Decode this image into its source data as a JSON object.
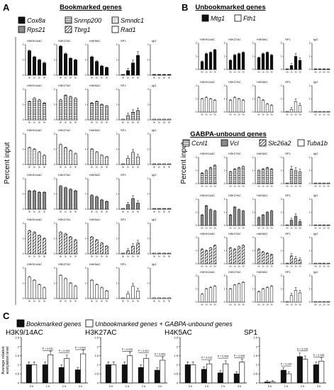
{
  "panel_labels": [
    "A",
    "B",
    "C"
  ],
  "panel_a": {
    "title": "Bookmarked genes",
    "y_label": "Percent input",
    "legend": [
      {
        "name": "Cox8a",
        "fill": "black"
      },
      {
        "name": "Snrnp200",
        "fill": "hstripe"
      },
      {
        "name": "Smndc1",
        "fill": "dots"
      },
      {
        "name": "Rps21",
        "fill": "gray"
      },
      {
        "name": "Tbrg1",
        "fill": "diag"
      },
      {
        "name": "Rad1",
        "fill": "white"
      }
    ]
  },
  "panel_b": {
    "title_unbookmarked": "Unbookmarked genes",
    "legend_unbookmarked": [
      {
        "name": "Mtg1",
        "fill": "black"
      },
      {
        "name": "Fth1",
        "fill": "white"
      }
    ],
    "title_unbound": "GABPA-unbound genes",
    "legend_unbound": [
      {
        "name": "Ccnl1",
        "fill": "hstripe"
      },
      {
        "name": "Vcl",
        "fill": "gray"
      },
      {
        "name": "Slc26a2",
        "fill": "diag"
      },
      {
        "name": "Tuba1b",
        "fill": "white"
      }
    ],
    "y_label": "Percent input"
  },
  "panel_c": {
    "legend": [
      {
        "name": "Bookmarked genes",
        "fill": "black"
      },
      {
        "name": "Unbookmarked genes + GABPA-unbound genes",
        "fill": "white"
      }
    ],
    "y_label_line1": "Average relative",
    "y_label_line2": "acetylation level"
  },
  "colors": {
    "black": "#111111",
    "gray": "#8a8a8a",
    "white": "#ffffff",
    "ink": "#000000"
  },
  "chart_data": [
    {
      "type": "bar",
      "panel": "A",
      "marks": [
        "H3K9/14AC",
        "H3K27AC",
        "H4K5AC",
        "SP1",
        "IgG"
      ],
      "categories": [
        "0 h",
        "1 h",
        "2 h",
        "3 h"
      ],
      "rows": [
        {
          "gene": "Cox8a",
          "fill": "black",
          "values": [
            [
              1.6,
              1.2,
              1.0,
              0.8
            ],
            [
              1.9,
              1.4,
              1.1,
              1.0
            ],
            [
              1.2,
              0.9,
              0.6,
              0.5
            ],
            [
              0.05,
              0.3,
              0.8,
              1.3
            ],
            [
              0.05,
              0.05,
              0.05,
              0.05
            ]
          ]
        },
        {
          "gene": "Snrnp200",
          "fill": "hstripe",
          "values": [
            [
              1.2,
              1.4,
              1.3,
              1.1
            ],
            [
              1.3,
              1.6,
              1.5,
              1.4
            ],
            [
              1.1,
              1.2,
              1.0,
              0.9
            ],
            [
              0.05,
              0.3,
              0.5,
              0.6
            ],
            [
              0.05,
              0.05,
              0.05,
              0.05
            ]
          ]
        },
        {
          "gene": "Smndc1",
          "fill": "dots",
          "values": [
            [
              1.1,
              1.0,
              0.8,
              0.6
            ],
            [
              1.3,
              1.1,
              0.9,
              0.7
            ],
            [
              1.0,
              0.8,
              0.6,
              0.5
            ],
            [
              0.05,
              0.4,
              0.8,
              0.5
            ],
            [
              0.05,
              0.05,
              0.05,
              0.05
            ]
          ]
        },
        {
          "gene": "Rps21",
          "fill": "gray",
          "values": [
            [
              1.2,
              1.2,
              1.1,
              1.1
            ],
            [
              1.5,
              1.4,
              1.3,
              1.2
            ],
            [
              0.9,
              0.8,
              0.6,
              0.5
            ],
            [
              0.05,
              0.3,
              0.7,
              0.4
            ],
            [
              0.05,
              0.05,
              0.05,
              0.05
            ]
          ]
        },
        {
          "gene": "Tbrg1",
          "fill": "diag",
          "values": [
            [
              1.5,
              1.4,
              1.2,
              1.0
            ],
            [
              1.4,
              1.3,
              1.1,
              0.9
            ],
            [
              1.1,
              0.9,
              0.7,
              0.5
            ],
            [
              0.05,
              0.2,
              0.5,
              0.7
            ],
            [
              0.05,
              0.05,
              0.05,
              0.05
            ]
          ]
        },
        {
          "gene": "Rad1",
          "fill": "white",
          "values": [
            [
              1.4,
              1.2,
              0.9,
              0.7
            ],
            [
              1.5,
              1.3,
              1.0,
              0.8
            ],
            [
              1.2,
              0.9,
              0.7,
              0.5
            ],
            [
              0.05,
              0.3,
              0.8,
              0.5
            ],
            [
              0.05,
              0.05,
              0.05,
              0.05
            ]
          ]
        }
      ]
    },
    {
      "type": "bar",
      "panel": "B",
      "marks": [
        "H3K9/14AC",
        "H3K27AC",
        "H4K5AC",
        "SP1",
        "IgG"
      ],
      "categories": [
        "0 h",
        "1 h",
        "2 h",
        "3 h"
      ],
      "rows": [
        {
          "gene": "Mtg1",
          "fill": "black",
          "values": [
            [
              0.6,
              1.2,
              1.3,
              1.5
            ],
            [
              0.7,
              1.1,
              1.2,
              1.3
            ],
            [
              0.9,
              1.2,
              1.3,
              1.1
            ],
            [
              0.05,
              0.3,
              1.0,
              0.7
            ],
            [
              0.05,
              0.05,
              0.05,
              0.05
            ]
          ]
        },
        {
          "gene": "Fth1",
          "fill": "white",
          "values": [
            [
              1.0,
              1.1,
              1.0,
              0.9
            ],
            [
              0.9,
              1.1,
              1.0,
              0.9
            ],
            [
              1.1,
              0.9,
              0.6,
              0.5
            ],
            [
              0.05,
              0.2,
              0.8,
              0.5
            ],
            [
              0.05,
              0.05,
              0.05,
              0.05
            ]
          ]
        },
        {
          "gene": "Ccnl1",
          "fill": "hstripe",
          "values": [
            [
              0.8,
              1.0,
              1.2,
              1.4
            ],
            [
              0.9,
              1.1,
              1.2,
              1.3
            ],
            [
              1.0,
              1.1,
              1.2,
              1.1
            ],
            [
              0.05,
              1.1,
              1.0,
              0.9
            ],
            [
              0.05,
              0.05,
              0.05,
              0.05
            ]
          ]
        },
        {
          "gene": "Vcl",
          "fill": "gray",
          "values": [
            [
              0.8,
              1.5,
              1.2,
              1.1
            ],
            [
              0.8,
              1.4,
              1.2,
              1.1
            ],
            [
              0.6,
              0.8,
              1.0,
              1.1
            ],
            [
              0.05,
              0.4,
              0.7,
              0.3
            ],
            [
              0.05,
              0.05,
              0.05,
              0.05
            ]
          ]
        },
        {
          "gene": "Slc26a2",
          "fill": "diag",
          "values": [
            [
              1.1,
              1.0,
              1.2,
              1.4
            ],
            [
              1.2,
              1.1,
              1.3,
              1.4
            ],
            [
              1.1,
              0.9,
              0.8,
              0.7
            ],
            [
              0.05,
              0.6,
              0.4,
              0.3
            ],
            [
              0.05,
              0.05,
              0.05,
              0.05
            ]
          ]
        },
        {
          "gene": "Tuba1b",
          "fill": "white",
          "values": [
            [
              0.6,
              1.0,
              1.1,
              1.2
            ],
            [
              1.0,
              1.3,
              1.4,
              1.5
            ],
            [
              0.8,
              1.0,
              1.1,
              1.2
            ],
            [
              0.05,
              0.5,
              0.9,
              0.7
            ],
            [
              0.05,
              0.05,
              0.05,
              0.05
            ]
          ]
        }
      ]
    },
    {
      "type": "bar",
      "panel": "C",
      "categories": [
        "0 h",
        "1 h",
        "2 h",
        "3 h"
      ],
      "subplots": [
        {
          "title": "H3K9/14AC",
          "ylim": [
            0,
            2.5
          ],
          "yticks": [
            "0",
            "0.5",
            "1",
            "1.5",
            "2",
            "2.5"
          ],
          "series": [
            {
              "name": "Bookmarked genes",
              "fill": "black",
              "values": [
                1.0,
                1.0,
                0.85,
                0.72
              ]
            },
            {
              "name": "Unbookmarked genes + GABPA-unbound genes",
              "fill": "white",
              "values": [
                1.0,
                1.55,
                1.35,
                1.6
              ]
            }
          ],
          "pvalues": [
            "P = 0.031",
            "P = 0.005",
            "P = 0.002"
          ]
        },
        {
          "title": "H3K27AC",
          "ylim": [
            0,
            2.5
          ],
          "yticks": [
            "0",
            "0.5",
            "1",
            "1.5",
            "2",
            "2.5"
          ],
          "series": [
            {
              "name": "Bookmarked genes",
              "fill": "black",
              "values": [
                1.0,
                1.0,
                0.85,
                0.7
              ]
            },
            {
              "name": "Unbookmarked genes + GABPA-unbound genes",
              "fill": "white",
              "values": [
                1.0,
                1.5,
                1.35,
                1.25
              ]
            }
          ],
          "pvalues": [
            "P = 0.025",
            "P = 0.001",
            "P = 0.003"
          ]
        },
        {
          "title": "H4K5AC",
          "ylim": [
            0,
            2.5
          ],
          "yticks": [
            "0",
            "0.5",
            "1",
            "1.5",
            "2",
            "2.5"
          ],
          "series": [
            {
              "name": "Bookmarked genes",
              "fill": "black",
              "values": [
                1.0,
                0.75,
                0.55,
                0.5
              ]
            },
            {
              "name": "Unbookmarked genes + GABPA-unbound genes",
              "fill": "white",
              "values": [
                1.0,
                1.05,
                1.05,
                1.15
              ]
            }
          ],
          "pvalues": [
            "P = 0.016",
            "P = 0.008",
            "P = 0.008"
          ]
        },
        {
          "title": "SP1",
          "ylim": [
            0,
            2.5
          ],
          "yticks": [
            "0",
            "0.5",
            "1",
            "1.5",
            "2",
            "2.5"
          ],
          "series": [
            {
              "name": "Bookmarked genes",
              "fill": "black",
              "values": [
                0.05,
                0.7,
                1.45,
                1.0
              ]
            },
            {
              "name": "Unbookmarked genes + GABPA-unbound genes",
              "fill": "white",
              "values": [
                0.05,
                0.5,
                1.3,
                1.2
              ]
            }
          ],
          "pvalues": [
            "P = 0.234",
            "P = 0.215",
            "P = 0.345"
          ]
        }
      ]
    }
  ]
}
